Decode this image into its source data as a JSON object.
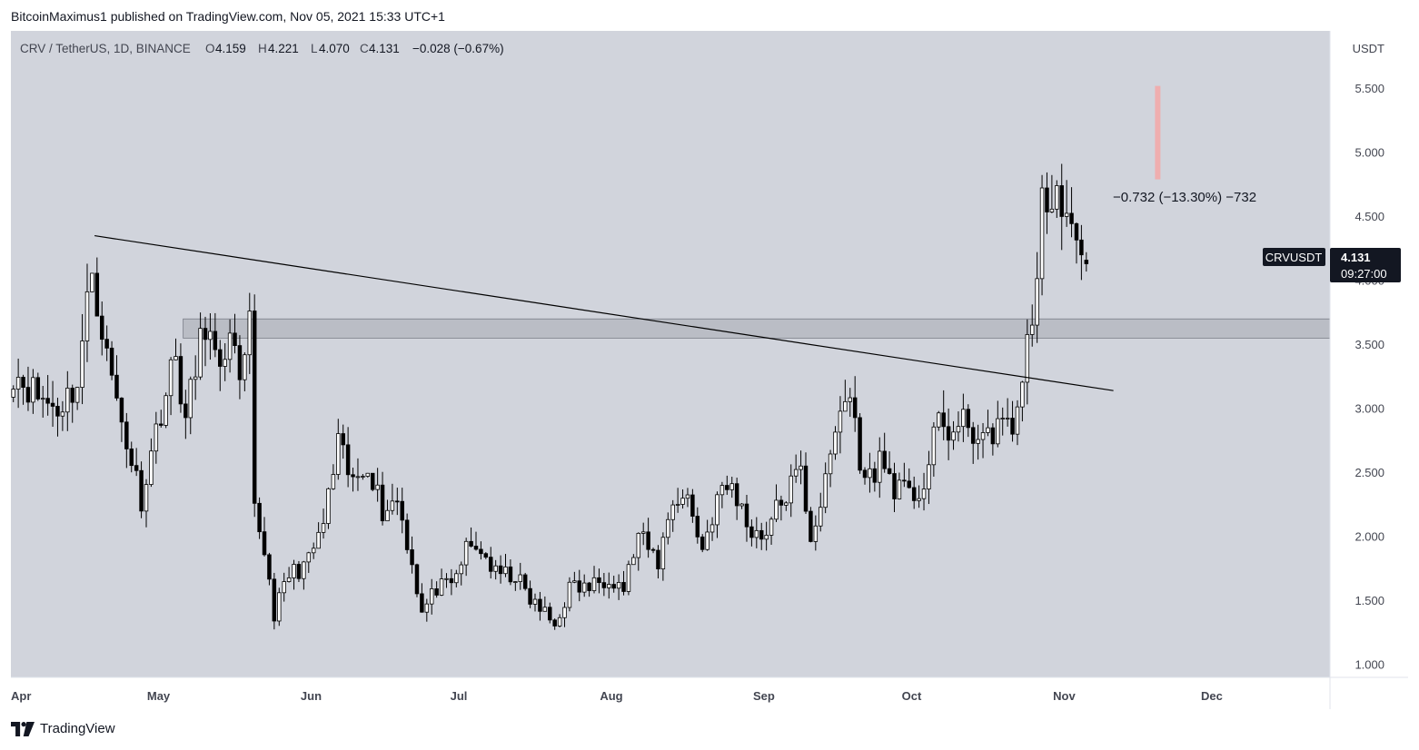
{
  "header": {
    "published_by": "BitcoinMaximus1 published on TradingView.com, Nov 05, 2021 15:33 UTC+1"
  },
  "legend": {
    "symbol": "CRV / TetherUS, 1D, BINANCE",
    "o_label": "O",
    "o_value": "4.159",
    "h_label": "H",
    "h_value": "4.221",
    "l_label": "L",
    "l_value": "4.070",
    "c_label": "C",
    "c_value": "4.131",
    "change": "−0.028 (−0.67%)"
  },
  "price_tag": {
    "ticker": "CRVUSDT",
    "price": "4.131",
    "countdown": "09:27:00"
  },
  "measurement": {
    "label": "−0.732 (−13.30%) −732"
  },
  "footer": {
    "brand": "TradingView"
  },
  "colors": {
    "plot_bg": "#d1d4dc",
    "axis_bg": "#ffffff",
    "text": "#131722",
    "axis_text": "#434651",
    "candle_body_up": "#ffffff",
    "candle_body_down": "#000000",
    "candle_outline": "#000000",
    "zone": "#b2b5be",
    "measure_bar": "#f4a7a7"
  },
  "chart_data": {
    "type": "candlestick",
    "ylabel": "USDT",
    "ylim": [
      0.9,
      5.95
    ],
    "yticks": [
      {
        "value": 1.0,
        "label": "1.000"
      },
      {
        "value": 1.5,
        "label": "1.500"
      },
      {
        "value": 2.0,
        "label": "2.000"
      },
      {
        "value": 2.5,
        "label": "2.500"
      },
      {
        "value": 3.0,
        "label": "3.000"
      },
      {
        "value": 3.5,
        "label": "3.500"
      },
      {
        "value": 4.0,
        "label": "4.000"
      },
      {
        "value": 4.5,
        "label": "4.500"
      },
      {
        "value": 5.0,
        "label": "5.000"
      },
      {
        "value": 5.5,
        "label": "5.500"
      }
    ],
    "xlim": [
      "2021-04-01",
      "2021-12-25"
    ],
    "xticks": [
      {
        "date": "2021-04-01",
        "label": "Apr"
      },
      {
        "date": "2021-05-01",
        "label": "May"
      },
      {
        "date": "2021-06-01",
        "label": "Jun"
      },
      {
        "date": "2021-07-01",
        "label": "Jul"
      },
      {
        "date": "2021-08-01",
        "label": "Aug"
      },
      {
        "date": "2021-09-01",
        "label": "Sep"
      },
      {
        "date": "2021-10-01",
        "label": "Oct"
      },
      {
        "date": "2021-11-01",
        "label": "Nov"
      },
      {
        "date": "2021-12-01",
        "label": "Dec"
      }
    ],
    "close_path": [
      {
        "date": "2021-04-01",
        "close": 3.3
      },
      {
        "date": "2021-04-06",
        "close": 3.1
      },
      {
        "date": "2021-04-10",
        "close": 3.0
      },
      {
        "date": "2021-04-14",
        "close": 3.2
      },
      {
        "date": "2021-04-17",
        "close": 4.1
      },
      {
        "date": "2021-04-20",
        "close": 3.4
      },
      {
        "date": "2021-04-23",
        "close": 2.9
      },
      {
        "date": "2021-04-27",
        "close": 2.3
      },
      {
        "date": "2021-05-01",
        "close": 3.0
      },
      {
        "date": "2021-05-04",
        "close": 3.4
      },
      {
        "date": "2021-05-06",
        "close": 2.9
      },
      {
        "date": "2021-05-08",
        "close": 3.3
      },
      {
        "date": "2021-05-10",
        "close": 3.7
      },
      {
        "date": "2021-05-13",
        "close": 3.2
      },
      {
        "date": "2021-05-15",
        "close": 3.7
      },
      {
        "date": "2021-05-17",
        "close": 3.1
      },
      {
        "date": "2021-05-19",
        "close": 3.6
      },
      {
        "date": "2021-05-20",
        "close": 2.2
      },
      {
        "date": "2021-05-22",
        "close": 1.9
      },
      {
        "date": "2021-05-24",
        "close": 1.4
      },
      {
        "date": "2021-05-27",
        "close": 1.7
      },
      {
        "date": "2021-05-31",
        "close": 1.8
      },
      {
        "date": "2021-06-03",
        "close": 2.1
      },
      {
        "date": "2021-06-06",
        "close": 2.7
      },
      {
        "date": "2021-06-09",
        "close": 2.4
      },
      {
        "date": "2021-06-12",
        "close": 2.6
      },
      {
        "date": "2021-06-15",
        "close": 2.2
      },
      {
        "date": "2021-06-18",
        "close": 2.3
      },
      {
        "date": "2021-06-21",
        "close": 1.8
      },
      {
        "date": "2021-06-23",
        "close": 1.4
      },
      {
        "date": "2021-06-26",
        "close": 1.6
      },
      {
        "date": "2021-06-29",
        "close": 1.6
      },
      {
        "date": "2021-07-02",
        "close": 1.9
      },
      {
        "date": "2021-07-05",
        "close": 1.9
      },
      {
        "date": "2021-07-08",
        "close": 1.7
      },
      {
        "date": "2021-07-12",
        "close": 1.7
      },
      {
        "date": "2021-07-15",
        "close": 1.5
      },
      {
        "date": "2021-07-18",
        "close": 1.4
      },
      {
        "date": "2021-07-20",
        "close": 1.3
      },
      {
        "date": "2021-07-23",
        "close": 1.6
      },
      {
        "date": "2021-07-27",
        "close": 1.6
      },
      {
        "date": "2021-07-31",
        "close": 1.7
      },
      {
        "date": "2021-08-03",
        "close": 1.6
      },
      {
        "date": "2021-08-06",
        "close": 2.0
      },
      {
        "date": "2021-08-10",
        "close": 1.8
      },
      {
        "date": "2021-08-13",
        "close": 2.3
      },
      {
        "date": "2021-08-16",
        "close": 2.3
      },
      {
        "date": "2021-08-19",
        "close": 1.9
      },
      {
        "date": "2021-08-22",
        "close": 2.3
      },
      {
        "date": "2021-08-25",
        "close": 2.4
      },
      {
        "date": "2021-08-28",
        "close": 2.1
      },
      {
        "date": "2021-08-31",
        "close": 2.0
      },
      {
        "date": "2021-09-03",
        "close": 2.2
      },
      {
        "date": "2021-09-06",
        "close": 2.4
      },
      {
        "date": "2021-09-08",
        "close": 2.5
      },
      {
        "date": "2021-09-10",
        "close": 2.0
      },
      {
        "date": "2021-09-13",
        "close": 2.4
      },
      {
        "date": "2021-09-16",
        "close": 3.0
      },
      {
        "date": "2021-09-18",
        "close": 3.1
      },
      {
        "date": "2021-09-21",
        "close": 2.4
      },
      {
        "date": "2021-09-24",
        "close": 2.6
      },
      {
        "date": "2021-09-27",
        "close": 2.4
      },
      {
        "date": "2021-09-30",
        "close": 2.3
      },
      {
        "date": "2021-10-03",
        "close": 2.4
      },
      {
        "date": "2021-10-06",
        "close": 2.9
      },
      {
        "date": "2021-10-09",
        "close": 2.8
      },
      {
        "date": "2021-10-12",
        "close": 2.9
      },
      {
        "date": "2021-10-15",
        "close": 2.7
      },
      {
        "date": "2021-10-18",
        "close": 2.9
      },
      {
        "date": "2021-10-21",
        "close": 2.8
      },
      {
        "date": "2021-10-23",
        "close": 3.3
      },
      {
        "date": "2021-10-25",
        "close": 3.6
      },
      {
        "date": "2021-10-27",
        "close": 4.7
      },
      {
        "date": "2021-10-29",
        "close": 4.5
      },
      {
        "date": "2021-10-31",
        "close": 4.7
      },
      {
        "date": "2021-11-02",
        "close": 4.3
      },
      {
        "date": "2021-11-04",
        "close": 4.1
      },
      {
        "date": "2021-11-05",
        "close": 4.131
      }
    ],
    "annotations": {
      "trendline": [
        {
          "date": "2021-04-18",
          "value": 4.35
        },
        {
          "date": "2021-11-11",
          "value": 3.14
        }
      ],
      "zone": {
        "from": "2021-05-06",
        "to": "2021-12-25",
        "low": 3.55,
        "high": 3.7
      },
      "measure": {
        "date": "2021-11-20",
        "low": 4.79,
        "high": 5.52
      }
    },
    "grid": false,
    "legend": "top-left"
  }
}
